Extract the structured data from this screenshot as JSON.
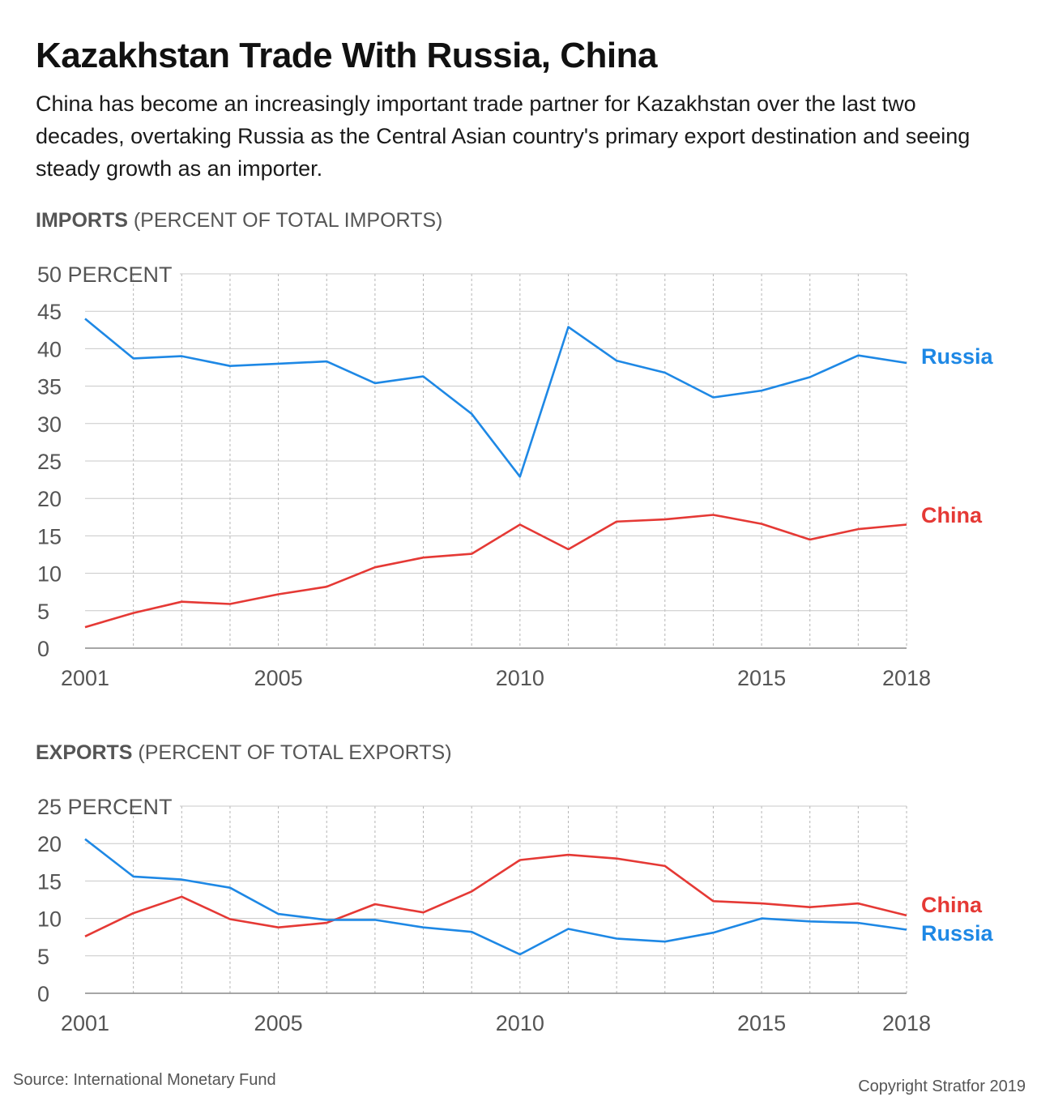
{
  "title": "Kazakhstan Trade With Russia, China",
  "subtitle": "China has become an increasingly important trade partner for Kazakhstan over the last two decades, overtaking Russia as the Central Asian country's primary export destination and seeing steady growth as an importer.",
  "colors": {
    "russia": "#1e88e5",
    "china": "#e53935",
    "grid": "#c8c8c8",
    "axis_text": "#555555"
  },
  "source": "Source: International Monetary Fund",
  "copyright": "Copyright Stratfor 2019",
  "chart_data": [
    {
      "type": "line",
      "label_bold": "IMPORTS",
      "label_rest": " (PERCENT OF TOTAL IMPORTS)",
      "x": [
        2001,
        2002,
        2003,
        2004,
        2005,
        2006,
        2007,
        2008,
        2009,
        2010,
        2011,
        2012,
        2013,
        2014,
        2015,
        2016,
        2017,
        2018
      ],
      "x_tick_labels": [
        "2001",
        "2005",
        "2010",
        "2015",
        "2018"
      ],
      "y_ticks": [
        0,
        5,
        10,
        15,
        20,
        25,
        30,
        35,
        40,
        45,
        50
      ],
      "y_top_label": "50 PERCENT",
      "ylim": [
        0,
        50
      ],
      "grid": true,
      "series": [
        {
          "name": "Russia",
          "color_key": "russia",
          "values": [
            44.0,
            38.7,
            39.0,
            37.7,
            38.0,
            38.3,
            35.4,
            36.3,
            31.3,
            22.9,
            42.9,
            38.4,
            36.8,
            33.5,
            34.4,
            36.2,
            39.1,
            38.1
          ]
        },
        {
          "name": "China",
          "color_key": "china",
          "values": [
            2.8,
            4.7,
            6.2,
            5.9,
            7.2,
            8.2,
            10.8,
            12.1,
            12.6,
            16.5,
            13.2,
            16.9,
            17.2,
            17.8,
            16.6,
            14.5,
            15.9,
            16.5
          ]
        }
      ]
    },
    {
      "type": "line",
      "label_bold": "EXPORTS",
      "label_rest": " (PERCENT OF TOTAL EXPORTS)",
      "x": [
        2001,
        2002,
        2003,
        2004,
        2005,
        2006,
        2007,
        2008,
        2009,
        2010,
        2011,
        2012,
        2013,
        2014,
        2015,
        2016,
        2017,
        2018
      ],
      "x_tick_labels": [
        "2001",
        "2005",
        "2010",
        "2015",
        "2018"
      ],
      "y_ticks": [
        0,
        5,
        10,
        15,
        20,
        25
      ],
      "y_top_label": "25 PERCENT",
      "ylim": [
        0,
        25
      ],
      "grid": true,
      "series": [
        {
          "name": "China",
          "color_key": "china",
          "values": [
            7.6,
            10.7,
            12.9,
            9.9,
            8.8,
            9.4,
            11.9,
            10.8,
            13.6,
            17.8,
            18.5,
            18.0,
            17.0,
            12.3,
            12.0,
            11.5,
            12.0,
            10.4
          ]
        },
        {
          "name": "Russia",
          "color_key": "russia",
          "values": [
            20.6,
            15.6,
            15.2,
            14.1,
            10.6,
            9.8,
            9.8,
            8.8,
            8.2,
            5.2,
            8.6,
            7.3,
            6.9,
            8.1,
            10.0,
            9.6,
            9.4,
            8.5
          ]
        }
      ]
    }
  ]
}
